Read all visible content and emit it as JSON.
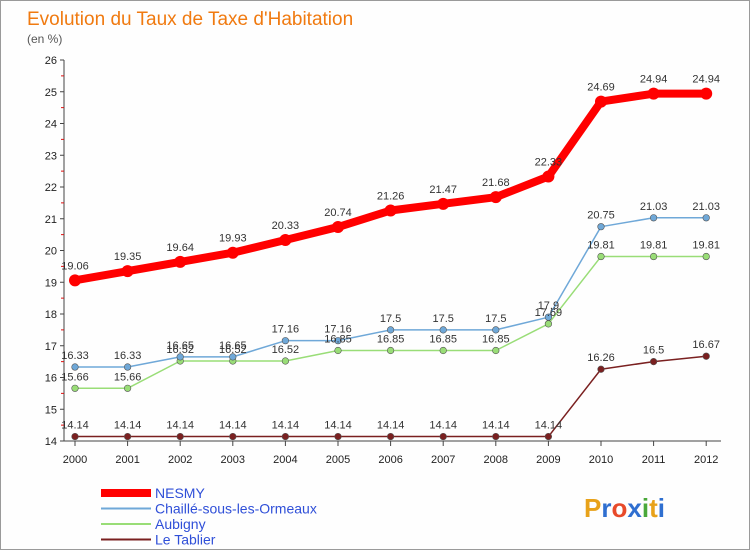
{
  "chart_data": {
    "type": "line",
    "title": "Evolution du Taux de Taxe d'Habitation",
    "subtitle": "(en %)",
    "x": [
      "2000",
      "2001",
      "2002",
      "2003",
      "2004",
      "2005",
      "2006",
      "2007",
      "2008",
      "2009",
      "2010",
      "2011",
      "2012"
    ],
    "ylim": [
      14,
      26
    ],
    "yticks": [
      14,
      15,
      16,
      17,
      18,
      19,
      20,
      21,
      22,
      23,
      24,
      25,
      26
    ],
    "ytick_labels": [
      "14",
      "15",
      "16",
      "17",
      "18",
      "19",
      "20",
      "21",
      "22",
      "23",
      "24",
      "25",
      "26"
    ],
    "grid": false,
    "legend_position": "bottom-left",
    "series": [
      {
        "name": "NESMY",
        "color": "#ff0000",
        "values": [
          19.06,
          19.35,
          19.64,
          19.93,
          20.33,
          20.74,
          21.26,
          21.47,
          21.68,
          22.33,
          24.69,
          24.94,
          24.94
        ],
        "labels": [
          "19.06",
          "19.35",
          "19.64",
          "19.93",
          "20.33",
          "20.74",
          "21.26",
          "21.47",
          "21.68",
          "22.33",
          "24.69",
          "24.94",
          "24.94"
        ]
      },
      {
        "name": "Chaillé-sous-les-Ormeaux",
        "color": "#6fa8d8",
        "values": [
          16.33,
          16.33,
          16.65,
          16.65,
          17.16,
          17.16,
          17.5,
          17.5,
          17.5,
          17.9,
          20.75,
          21.03,
          21.03
        ],
        "labels": [
          "16.33",
          "16.33",
          "16.65",
          "16.65",
          "17.16",
          "17.16",
          "17.5",
          "17.5",
          "17.5",
          "17.9",
          "20.75",
          "21.03",
          "21.03"
        ]
      },
      {
        "name": "Aubigny",
        "color": "#99dd77",
        "values": [
          15.66,
          15.66,
          16.52,
          16.52,
          16.52,
          16.85,
          16.85,
          16.85,
          16.85,
          17.69,
          19.81,
          19.81,
          19.81
        ],
        "labels": [
          "15.66",
          "15.66",
          "16.52",
          "16.52",
          "16.52",
          "16.85",
          "16.85",
          "16.85",
          "16.85",
          "17.69",
          "19.81",
          "19.81",
          "19.81"
        ]
      },
      {
        "name": "Le Tablier",
        "color": "#7a2020",
        "values": [
          14.14,
          14.14,
          14.14,
          14.14,
          14.14,
          14.14,
          14.14,
          14.14,
          14.14,
          14.14,
          16.26,
          16.5,
          16.67
        ],
        "labels": [
          "14.14",
          "14.14",
          "14.14",
          "14.14",
          "14.14",
          "14.14",
          "14.14",
          "14.14",
          "14.14",
          "14.14",
          "16.26",
          "16.5",
          "16.67"
        ]
      }
    ]
  },
  "logo": {
    "text": "Proxiti",
    "letters": [
      {
        "ch": "P",
        "color": "#e8a21a"
      },
      {
        "ch": "r",
        "color": "#2f6fd0"
      },
      {
        "ch": "o",
        "color": "#e84a2a"
      },
      {
        "ch": "x",
        "color": "#2f6fd0"
      },
      {
        "ch": "i",
        "color": "#4aa83a"
      },
      {
        "ch": "t",
        "color": "#e8a21a"
      },
      {
        "ch": "i",
        "color": "#2f6fd0"
      }
    ]
  }
}
